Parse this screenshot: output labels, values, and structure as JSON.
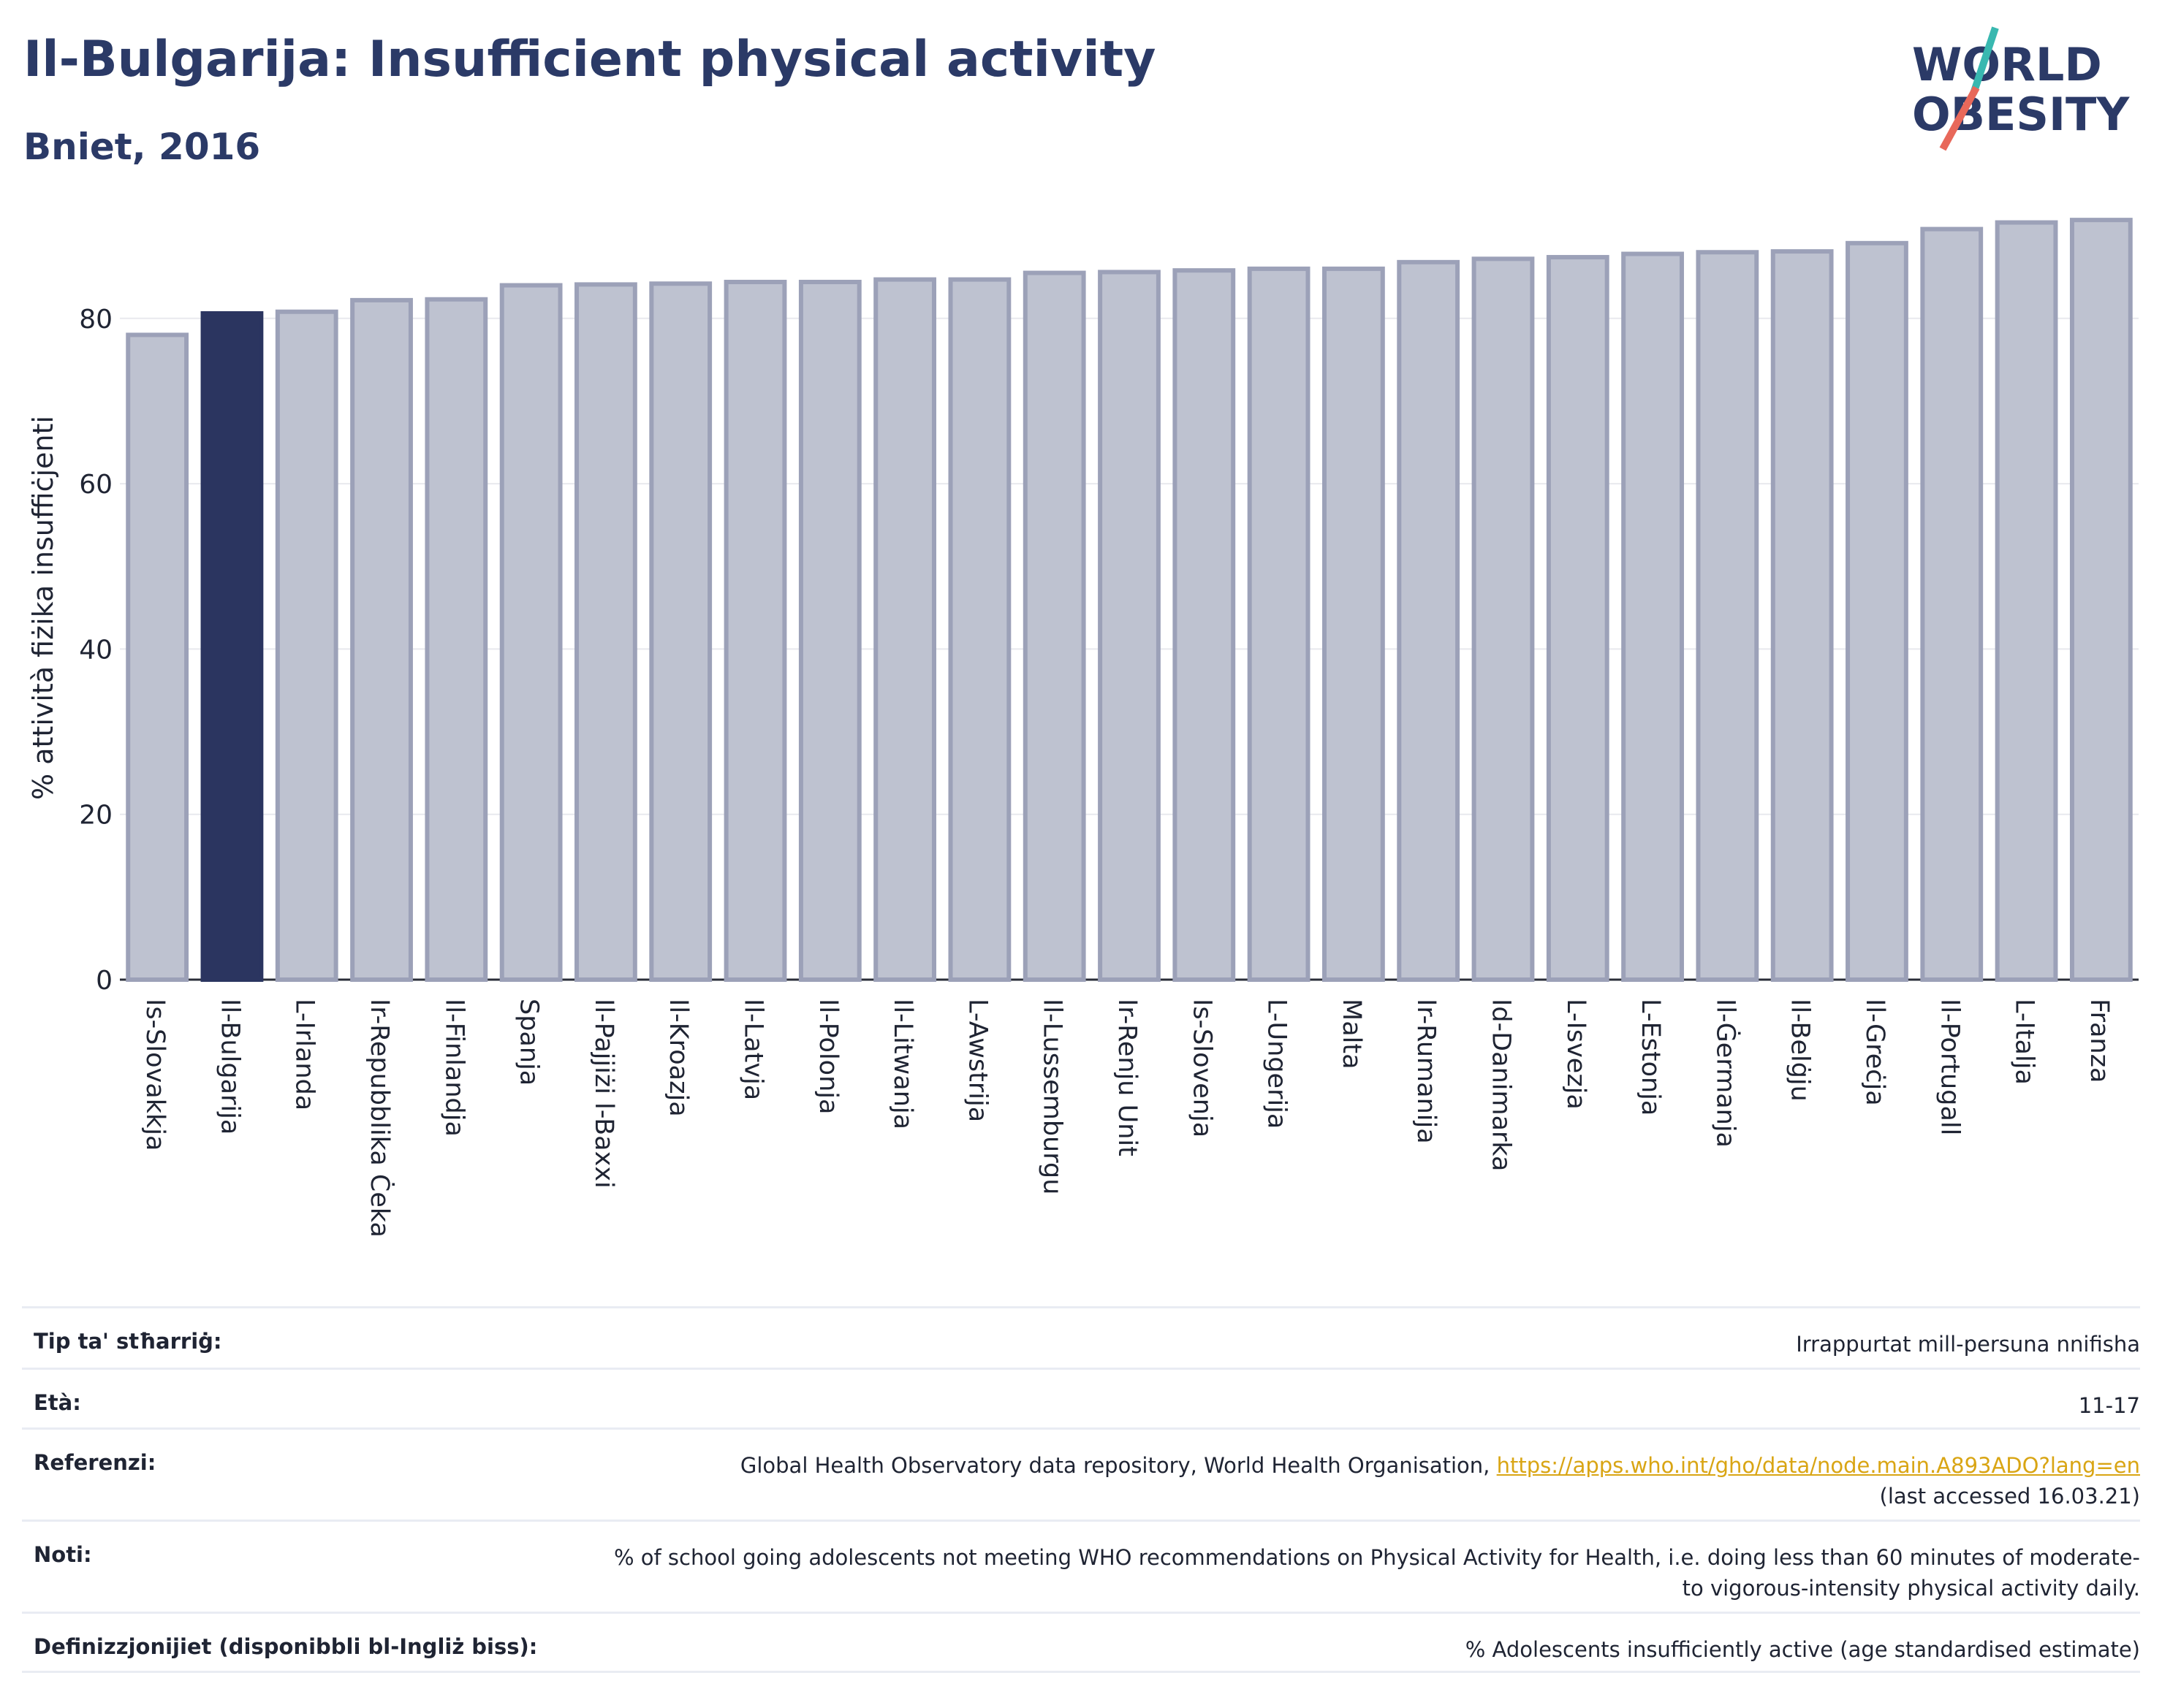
{
  "header": {
    "title": "Il-Bulgarija: Insufficient physical activity",
    "subtitle": "Bniet, 2016"
  },
  "logo": {
    "line1": "WORLD",
    "line2": "OBESITY",
    "accent_colors": [
      "#39b8b0",
      "#e8685a"
    ]
  },
  "colors": {
    "highlight": "#2b3560",
    "bar": "#bec2d0",
    "bar_edge": "#9ca1b8",
    "text": "#2b3a67"
  },
  "chart_data": {
    "type": "bar",
    "ylabel": "% attività fiżika insuffiċjenti",
    "ylim": [
      0,
      92
    ],
    "yticks": [
      0,
      20,
      40,
      60,
      80
    ],
    "grid": true,
    "highlight": "Il-Bulgarija",
    "categories": [
      "Is-Slovakkja",
      "Il-Bulgarija",
      "L-Irlanda",
      "Ir-Repubblika Ċeka",
      "Il-Finlandja",
      "Spanja",
      "Il-Pajjiżi l-Baxxi",
      "Il-Kroazja",
      "Il-Latvja",
      "Il-Polonja",
      "Il-Litwanja",
      "L-Awstrija",
      "Il-Lussemburgu",
      "Ir-Renju Unit",
      "Is-Slovenja",
      "L-Ungerija",
      "Malta",
      "Ir-Rumanija",
      "Id-Danimarka",
      "L-Isvezja",
      "L-Estonja",
      "Il-Ġermanja",
      "Il-Belġju",
      "Il-Greċja",
      "Il-Portugall",
      "L-Italja",
      "Franza"
    ],
    "values": [
      78.0,
      80.6,
      80.8,
      82.2,
      82.3,
      84.0,
      84.1,
      84.2,
      84.4,
      84.4,
      84.7,
      84.7,
      85.5,
      85.6,
      85.8,
      86.0,
      86.0,
      86.8,
      87.2,
      87.4,
      87.8,
      88.0,
      88.1,
      89.1,
      90.8,
      91.6,
      91.9
    ]
  },
  "meta": {
    "rows": [
      {
        "label": "Tip ta' stħarriġ:",
        "value": "Irrappurtat mill-persuna nnifisha"
      },
      {
        "label": "Età:",
        "value": "11-17"
      },
      {
        "label": "Referenzi:",
        "value": "Global Health Observatory data repository, World Health Organisation, ",
        "link": "https://apps.who.int/gho/data/node.main.A893ADO?lang=en",
        "value2": "(last accessed 16.03.21)"
      },
      {
        "label": "Noti:",
        "value": "% of school going adolescents not meeting WHO recommendations on Physical Activity for Health, i.e. doing less than 60 minutes of moderate- to vigorous-intensity physical activity daily."
      },
      {
        "label": "Definizzjonijiet (disponibbli bl-Ingliż biss):",
        "value": "% Adolescents insufficiently active (age standardised estimate)"
      }
    ]
  }
}
